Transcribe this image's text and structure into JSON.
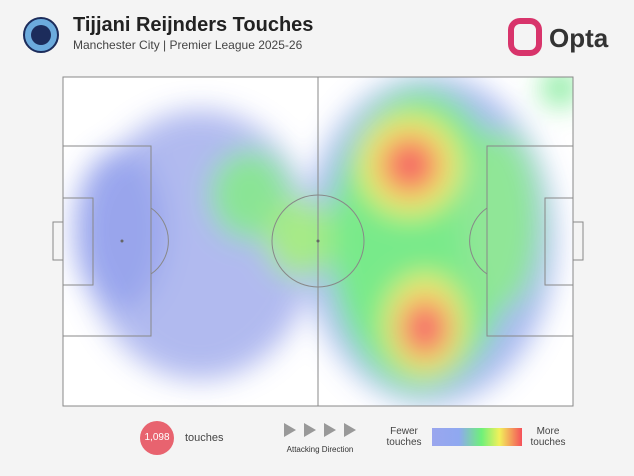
{
  "header": {
    "title": "Tijjani Reijnders Touches",
    "subtitle": "Manchester City | Premier League 2025-26",
    "brand": "Opta"
  },
  "touches": {
    "count": {
      "value": 1098,
      "label": "1,098"
    },
    "unit": "touches"
  },
  "direction": "Attacking Direction",
  "legend": {
    "low": "Fewer touches",
    "high": "More touches"
  }
}
